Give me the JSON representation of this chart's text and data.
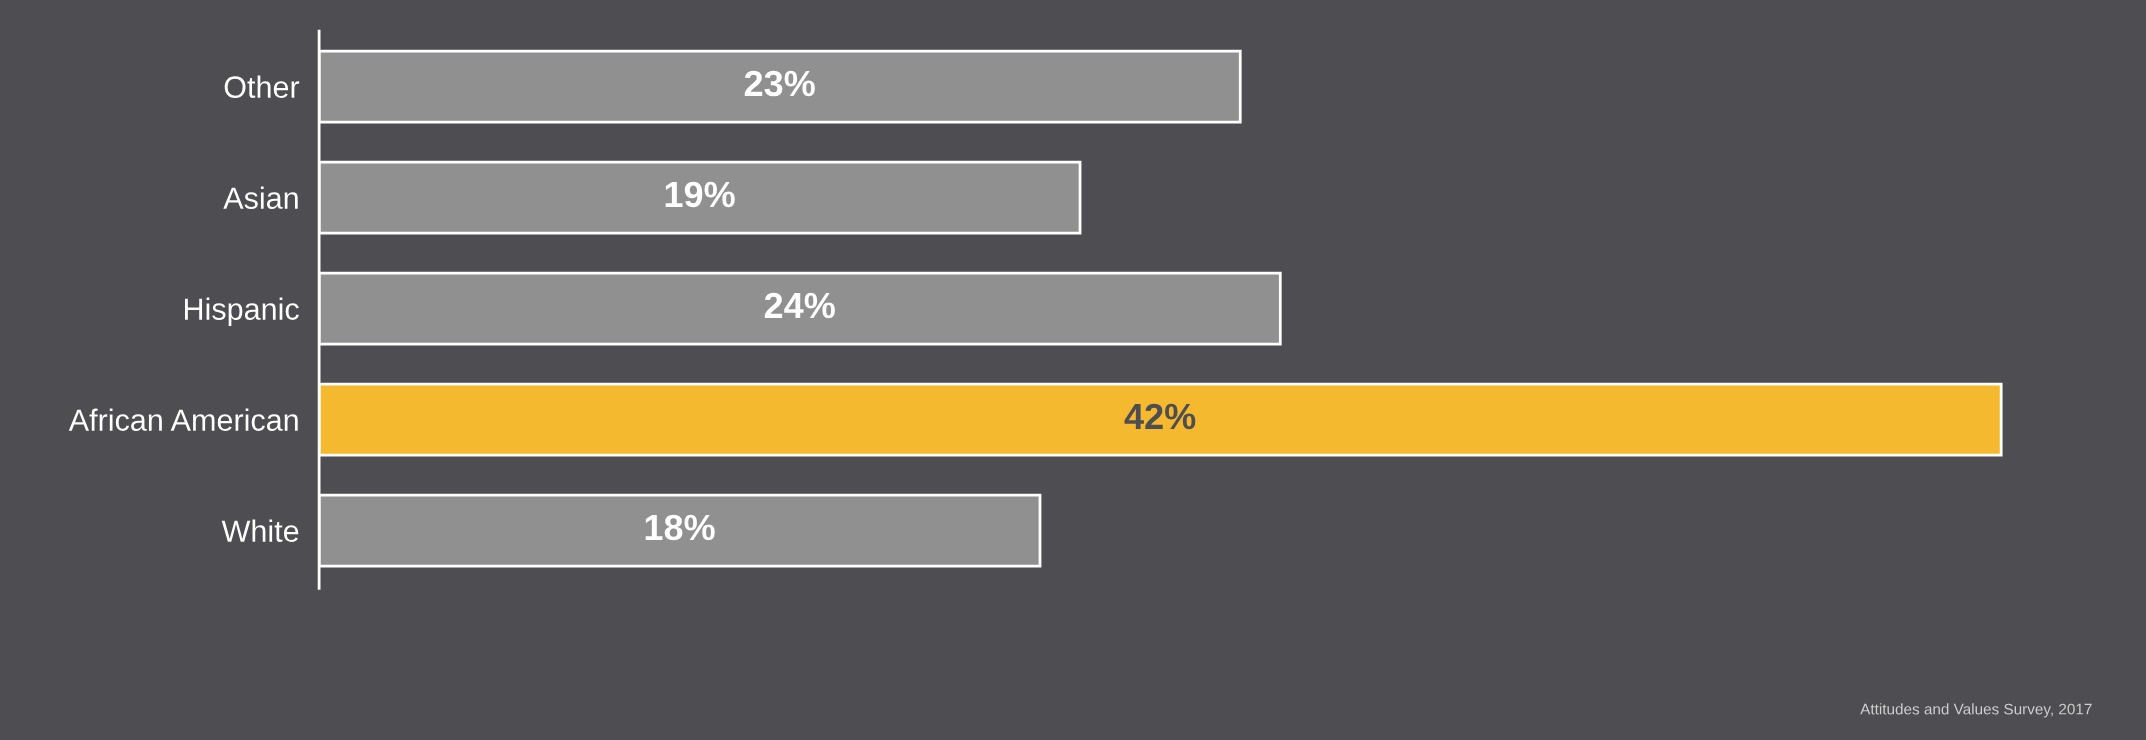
{
  "chart_data": {
    "type": "bar",
    "orientation": "horizontal",
    "categories": [
      "Other",
      "Asian",
      "Hispanic",
      "African American",
      "White"
    ],
    "values": [
      23,
      19,
      24,
      42,
      18
    ],
    "colors": [
      "#909090",
      "#909090",
      "#909090",
      "#f4b92e",
      "#909090"
    ],
    "data_labels": true,
    "value_labels": [
      "23%",
      "19%",
      "24%",
      "42%",
      "18%"
    ],
    "grid": false,
    "legend": false,
    "tick_labels": "y",
    "annotations": [
      "Attitudes and Values Survey, 2017"
    ]
  }
}
